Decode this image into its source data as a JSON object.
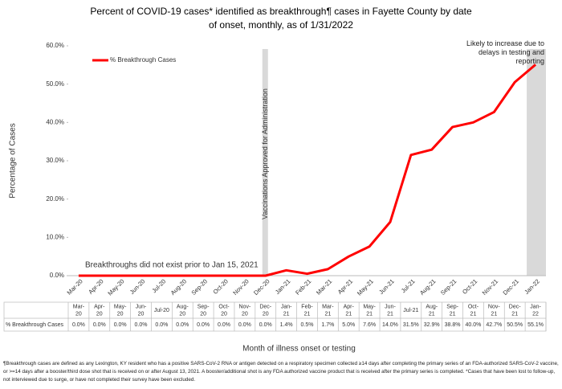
{
  "chart_data": {
    "type": "line",
    "title": "Percent of COVID-19 cases* identified as breakthrough¶ cases in Fayette County by date of onset, monthly, as of 1/31/2022",
    "y_label": "Percentage of Cases",
    "x_label": "Month of illness onset or testing",
    "categories": [
      "Mar-20",
      "Apr-20",
      "May-20",
      "Jun-20",
      "Jul-20",
      "Aug-20",
      "Sep-20",
      "Oct-20",
      "Nov-20",
      "Dec-20",
      "Jan-21",
      "Feb-21",
      "Mar-21",
      "Apr-21",
      "May-21",
      "Jun-21",
      "Jul-21",
      "Aug-21",
      "Sep-21",
      "Oct-21",
      "Nov-21",
      "Dec-21",
      "Jan-22"
    ],
    "series": [
      {
        "name": "% Breakthrough Cases",
        "color": "#ff0000",
        "values": [
          0,
          0,
          0,
          0,
          0,
          0,
          0,
          0,
          0,
          0,
          1.4,
          0.5,
          1.7,
          5.0,
          7.6,
          14.0,
          31.5,
          32.9,
          38.8,
          40.0,
          42.7,
          50.5,
          55.1
        ],
        "value_labels": [
          "0.0%",
          "0.0%",
          "0.0%",
          "0.0%",
          "0.0%",
          "0.0%",
          "0.0%",
          "0.0%",
          "0.0%",
          "0.0%",
          "1.4%",
          "0.5%",
          "1.7%",
          "5.0%",
          "7.6%",
          "14.0%",
          "31.5%",
          "32.9%",
          "38.8%",
          "40.0%",
          "42.7%",
          "50.5%",
          "55.1%"
        ]
      }
    ],
    "ylim": [
      0,
      60
    ],
    "yticks": [
      {
        "value": 0,
        "label": "0.0%"
      },
      {
        "value": 10,
        "label": "10.0%"
      },
      {
        "value": 20,
        "label": "20.0%"
      },
      {
        "value": 30,
        "label": "30.0%"
      },
      {
        "value": 40,
        "label": "40.0%"
      },
      {
        "value": 50,
        "label": "50.0%"
      },
      {
        "value": 60,
        "label": "60.0%"
      }
    ],
    "legend": "top-left",
    "annotations": [
      "Vaccinations Approved for Administration",
      "Breakthroughs did not exist prior to Jan 15, 2021",
      "Likely to increase due to delays in testing and reporting"
    ],
    "footnote": "¶Breakthrough cases are defined as any Lexington, KY resident who has a positive SARS-CoV-2 RNA or antigen detected on a respiratory specimen collected ≥14 days after completing the primary series of an FDA-authorized SARS-CoV-2 vaccine, or >=14 days after a booster/third dose shot that is received on or after August 13, 2021. A booster/additional shot is any FDA authorized vaccine product that is received after the primary series is completed. *Cases that have been lost to follow-up, not interviewed due to surge, or have not completed their survey have been excluded."
  }
}
